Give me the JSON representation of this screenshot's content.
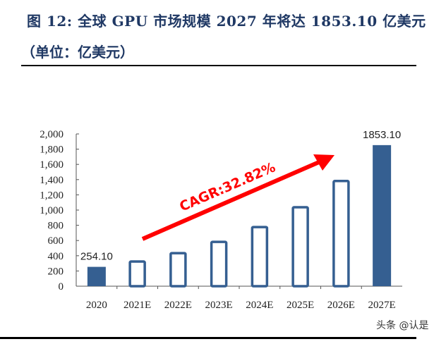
{
  "title_line1": "图 12: 全球 GPU 市场规模 2027 年将达 1853.10 亿美元",
  "title_line2": "（单位：亿美元）",
  "watermark": "头条 @认是",
  "chart_data": {
    "type": "bar",
    "categories": [
      "2020",
      "2021E",
      "2022E",
      "2023E",
      "2024E",
      "2025E",
      "2026E",
      "2027E"
    ],
    "values": [
      254.1,
      337.5,
      448.3,
      595.5,
      790.9,
      1050.5,
      1395.3,
      1853.1
    ],
    "filled": [
      true,
      false,
      false,
      false,
      false,
      false,
      false,
      true
    ],
    "data_labels": {
      "0": "254.10",
      "7": "1853.10"
    },
    "ylim": [
      0,
      2000
    ],
    "yticks": [
      "0",
      "200",
      "400",
      "600",
      "800",
      "1,000",
      "1,200",
      "1,400",
      "1,600",
      "1,800",
      "2,000"
    ],
    "annotation": "CAGR:32.82%",
    "colors": {
      "bar": "#355f91",
      "arrow": "#ff0000"
    },
    "grid": false
  }
}
